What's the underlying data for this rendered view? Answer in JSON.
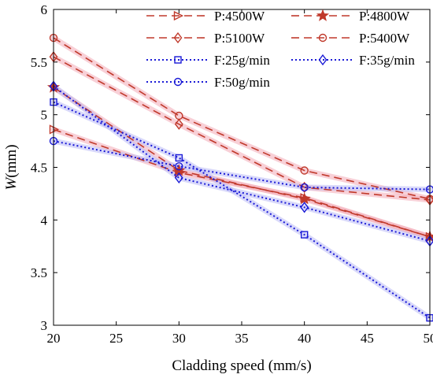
{
  "chart_data": {
    "type": "line",
    "xlabel": "Cladding speed (mm/s)",
    "ylabel_italic": "W",
    "ylabel_suffix": "(mm)",
    "xlim": [
      20,
      50
    ],
    "ylim": [
      3,
      6
    ],
    "xticks": [
      20,
      25,
      30,
      35,
      40,
      45,
      50
    ],
    "yticks": [
      3,
      3.5,
      4,
      4.5,
      5,
      5.5,
      6
    ],
    "grid": false,
    "legend_position": "top-right",
    "x": [
      20,
      30,
      40,
      50
    ],
    "series": [
      {
        "name": "P:4500W",
        "values": [
          4.86,
          4.45,
          4.21,
          3.84
        ],
        "color": "#c0392b",
        "dash": "dashed",
        "marker": "triangle-right",
        "halo": "#f2a9b7"
      },
      {
        "name": "P:4800W",
        "values": [
          5.26,
          4.47,
          4.2,
          3.84
        ],
        "color": "#c0392b",
        "dash": "dashed",
        "marker": "star",
        "halo": "#f2a9b7"
      },
      {
        "name": "P:5100W",
        "values": [
          5.55,
          4.91,
          4.31,
          4.19
        ],
        "color": "#c0392b",
        "dash": "dashed",
        "marker": "diamond",
        "halo": "#f2a9b7"
      },
      {
        "name": "P:5400W",
        "values": [
          5.73,
          4.99,
          4.47,
          4.2
        ],
        "color": "#c0392b",
        "dash": "dashed",
        "marker": "circle",
        "halo": "#f2a9b7"
      },
      {
        "name": "F:25g/min",
        "values": [
          5.12,
          4.59,
          3.86,
          3.07
        ],
        "color": "#1a1ad6",
        "dash": "dotted",
        "marker": "square",
        "halo": "#b9b9f5"
      },
      {
        "name": "F:35g/min",
        "values": [
          5.27,
          4.4,
          4.12,
          3.8
        ],
        "color": "#1a1ad6",
        "dash": "dotted",
        "marker": "diamond",
        "halo": "#b9b9f5"
      },
      {
        "name": "F:50g/min",
        "values": [
          4.75,
          4.51,
          4.31,
          4.29
        ],
        "color": "#1a1ad6",
        "dash": "dotted",
        "marker": "circle",
        "halo": "#b9b9f5"
      }
    ]
  }
}
